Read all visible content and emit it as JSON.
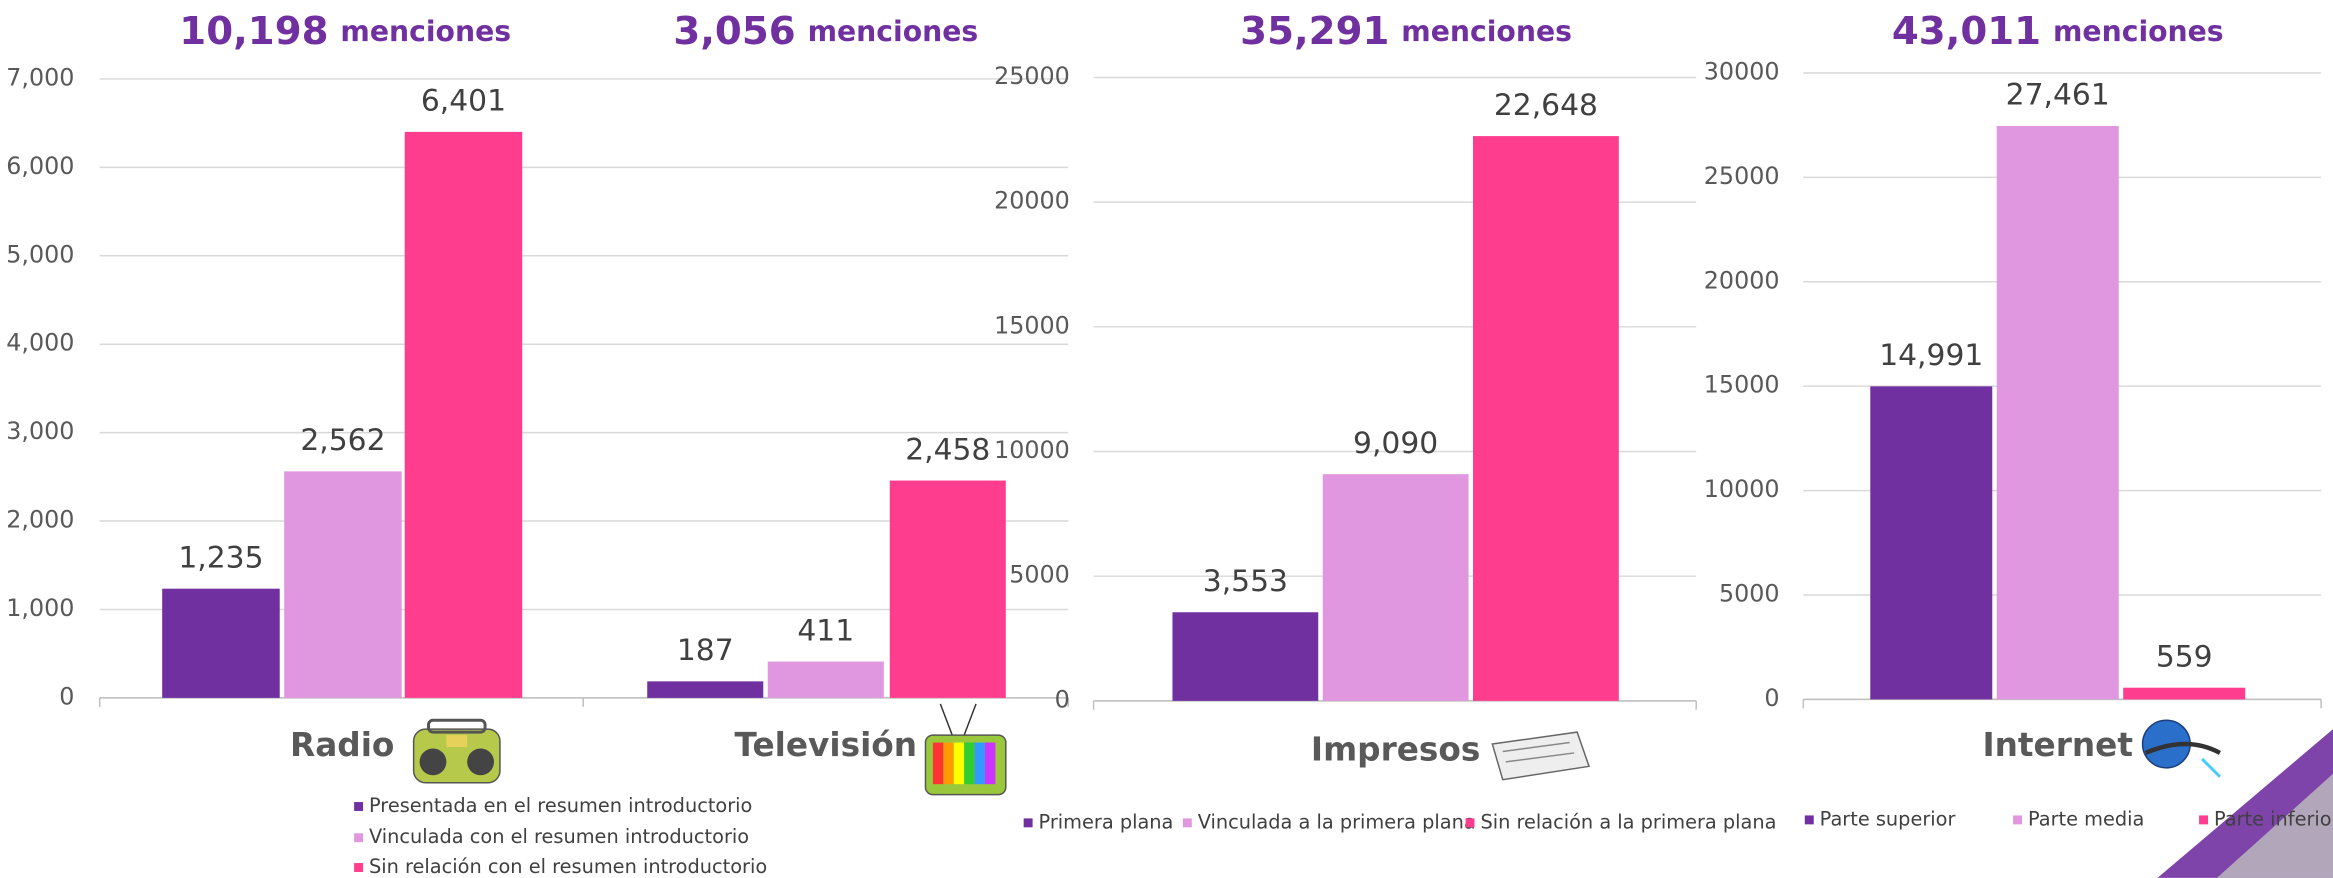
{
  "chart_data": [
    {
      "type": "bar",
      "headlines": [
        {
          "number": "10,198",
          "word": "menciones"
        },
        {
          "number": "3,056",
          "word": "menciones"
        }
      ],
      "categories": [
        "Radio",
        "Televisión"
      ],
      "series": [
        {
          "name": "Presentada en el resumen introductorio",
          "color": "#7030a0",
          "values": [
            1235,
            187
          ],
          "value_labels": [
            "1,235",
            "187"
          ]
        },
        {
          "name": "Vinculada con el resumen introductorio",
          "color": "#e197e0",
          "values": [
            2562,
            411
          ],
          "value_labels": [
            "2,562",
            "411"
          ]
        },
        {
          "name": "Sin relación con el resumen introductorio",
          "color": "#ff3d8e",
          "values": [
            6401,
            2458
          ],
          "value_labels": [
            "6,401",
            "2,458"
          ]
        }
      ],
      "ylim": [
        0,
        7000
      ],
      "yticks": [
        0,
        {
          "value": 1000,
          "label": "1,000"
        },
        {
          "value": 2000,
          "label": "2,000"
        },
        {
          "value": 3000,
          "label": "3,000"
        },
        {
          "value": 4000,
          "label": "4,000"
        },
        {
          "value": 5000,
          "label": "5,000"
        },
        {
          "value": 6000,
          "label": "6,000"
        },
        {
          "value": 7000,
          "label": "7,000"
        }
      ],
      "grid": true
    },
    {
      "type": "bar",
      "headlines": [
        {
          "number": "35,291",
          "word": "menciones"
        }
      ],
      "categories": [
        "Impresos"
      ],
      "series": [
        {
          "name": "Primera plana",
          "color": "#7030a0",
          "values": [
            3553
          ],
          "value_labels": [
            "3,553"
          ]
        },
        {
          "name": "Vinculada a la primera plana",
          "color": "#e197e0",
          "values": [
            9090
          ],
          "value_labels": [
            "9,090"
          ]
        },
        {
          "name": "Sin relación a la primera plana",
          "color": "#ff3d8e",
          "values": [
            22648
          ],
          "value_labels": [
            "22,648"
          ]
        }
      ],
      "ylim": [
        0,
        25000
      ],
      "yticks": [
        0,
        5000,
        10000,
        15000,
        20000,
        25000
      ],
      "grid": true
    },
    {
      "type": "bar",
      "headlines": [
        {
          "number": "43,011",
          "word": "menciones"
        }
      ],
      "categories": [
        "Internet"
      ],
      "series": [
        {
          "name": "Parte superior",
          "color": "#7030a0",
          "values": [
            14991
          ],
          "value_labels": [
            "14,991"
          ]
        },
        {
          "name": "Parte media",
          "color": "#e197e0",
          "values": [
            27461
          ],
          "value_labels": [
            "27,461"
          ]
        },
        {
          "name": "Parte inferior",
          "color": "#ff3d8e",
          "values": [
            559
          ],
          "value_labels": [
            "559"
          ]
        }
      ],
      "ylim": [
        0,
        30000
      ],
      "yticks": [
        0,
        5000,
        10000,
        15000,
        20000,
        25000,
        30000
      ],
      "grid": true
    }
  ]
}
